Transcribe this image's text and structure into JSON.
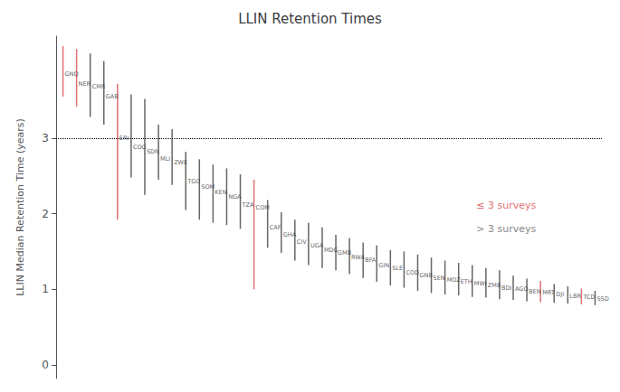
{
  "chart_data": {
    "type": "range",
    "title": "LLIN Retention Times",
    "ylabel": "LLIN Median Retention Time (years)",
    "categories": [
      "GNQ",
      "NER",
      "CMR",
      "GAB",
      "ERI",
      "COG",
      "SDN",
      "MLI",
      "ZWE",
      "TGO",
      "SOM",
      "KEN",
      "NGA",
      "TZA",
      "COM",
      "CAF",
      "GHA",
      "CIV",
      "UGA",
      "MDG",
      "GMB",
      "RWA",
      "BFA",
      "GIN",
      "SLE",
      "COD",
      "GNB",
      "SEN",
      "MOZ",
      "ETH",
      "MWI",
      "ZMB",
      "BDI",
      "AGO",
      "BEN",
      "MRT",
      "DJI",
      "LBR",
      "TCD",
      "SSD"
    ],
    "values": [
      3.85,
      3.72,
      3.68,
      3.55,
      3.0,
      2.88,
      2.82,
      2.72,
      2.68,
      2.42,
      2.35,
      2.28,
      2.22,
      2.12,
      2.08,
      1.82,
      1.72,
      1.62,
      1.58,
      1.52,
      1.48,
      1.42,
      1.38,
      1.32,
      1.28,
      1.22,
      1.18,
      1.15,
      1.12,
      1.1,
      1.08,
      1.05,
      1.02,
      1.0,
      0.97,
      0.95,
      0.93,
      0.91,
      0.89,
      0.87
    ],
    "lo": [
      3.55,
      3.42,
      3.28,
      3.18,
      1.92,
      2.48,
      2.25,
      2.45,
      2.38,
      2.05,
      1.92,
      1.88,
      1.85,
      1.8,
      1.0,
      1.55,
      1.48,
      1.38,
      1.32,
      1.28,
      1.25,
      1.2,
      1.15,
      1.1,
      1.05,
      1.02,
      0.98,
      0.95,
      0.93,
      0.92,
      0.9,
      0.89,
      0.87,
      0.86,
      0.84,
      0.83,
      0.82,
      0.81,
      0.8,
      0.79
    ],
    "hi": [
      4.22,
      4.18,
      4.12,
      4.02,
      3.72,
      3.58,
      3.52,
      3.18,
      3.12,
      2.82,
      2.72,
      2.65,
      2.6,
      2.52,
      2.45,
      2.18,
      2.02,
      1.92,
      1.88,
      1.82,
      1.72,
      1.68,
      1.62,
      1.58,
      1.52,
      1.5,
      1.46,
      1.42,
      1.38,
      1.35,
      1.32,
      1.28,
      1.25,
      1.18,
      1.14,
      1.11,
      1.07,
      1.04,
      1.01,
      0.98
    ],
    "colors": [
      "#e07070",
      "#e07070",
      "#666666",
      "#666666",
      "#e07070",
      "#666666",
      "#666666",
      "#666666",
      "#666666",
      "#666666",
      "#666666",
      "#666666",
      "#666666",
      "#666666",
      "#e07070",
      "#666666",
      "#666666",
      "#666666",
      "#666666",
      "#666666",
      "#666666",
      "#666666",
      "#666666",
      "#666666",
      "#666666",
      "#666666",
      "#666666",
      "#666666",
      "#666666",
      "#666666",
      "#666666",
      "#666666",
      "#666666",
      "#666666",
      "#666666",
      "#e07070",
      "#666666",
      "#666666",
      "#e07070",
      "#666666"
    ],
    "ylim": [
      -0.18,
      4.35
    ],
    "yticks": [
      0,
      1,
      2,
      3
    ],
    "grid": false,
    "tick_labels": "y",
    "reference_lines": [
      {
        "y": 3,
        "color": "#000000",
        "line_style": "dotted"
      }
    ],
    "annotations": [
      {
        "text": "≤ 3 surveys",
        "color": "#e07070"
      },
      {
        "text": "> 3 surveys",
        "color": "#888888"
      }
    ]
  }
}
